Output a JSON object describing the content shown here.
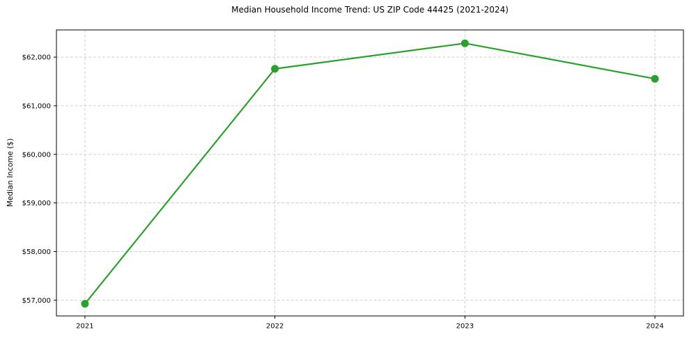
{
  "figure": {
    "title": "Median Household Income Trend: US ZIP Code 44425 (2021-2024)",
    "ylabel": "Median Income ($)"
  },
  "chart_data": {
    "type": "line",
    "title": "Median Household Income Trend: US ZIP Code 44425 (2021-2024)",
    "xlabel": "",
    "ylabel": "Median Income ($)",
    "x": [
      2021,
      2022,
      2023,
      2024
    ],
    "xtick_labels": [
      "2021",
      "2022",
      "2023",
      "2024"
    ],
    "series": [
      {
        "name": "Median Income ($)",
        "values": [
          56925,
          61760,
          62285,
          61555
        ]
      }
    ],
    "ytick_values": [
      57000,
      58000,
      59000,
      60000,
      61000,
      62000
    ],
    "ytick_labels": [
      "$57,000",
      "$58,000",
      "$59,000",
      "$60,000",
      "$61,000",
      "$62,000"
    ],
    "xlim": [
      2020.85,
      2024.15
    ],
    "ylim": [
      56675,
      62560
    ],
    "grid": true,
    "legend": "none",
    "line_color": "#2ca02c",
    "marker": "circle",
    "marker_radius": 5.5,
    "line_width": 2.2,
    "grid_color": "#c9c9c9",
    "spine_color": "#000000",
    "background_color": "#ffffff"
  }
}
